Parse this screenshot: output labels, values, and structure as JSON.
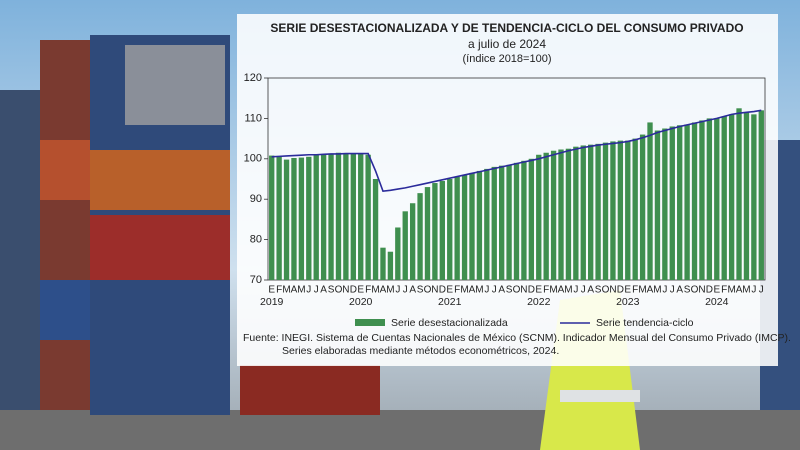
{
  "chart_data": {
    "type": "bar",
    "title": "SERIE DESESTACIONALIZADA Y DE TENDENCIA-CICLO DEL CONSUMO PRIVADO",
    "subtitle": "a julio de 2024",
    "subtitle2": "(índice 2018=100)",
    "categories": [
      "E",
      "F",
      "M",
      "A",
      "M",
      "J",
      "J",
      "A",
      "S",
      "O",
      "N",
      "D",
      "E",
      "F",
      "M",
      "A",
      "M",
      "J",
      "J",
      "A",
      "S",
      "O",
      "N",
      "D",
      "E",
      "F",
      "M",
      "A",
      "M",
      "J",
      "J",
      "A",
      "S",
      "O",
      "N",
      "D",
      "E",
      "F",
      "M",
      "A",
      "M",
      "J",
      "J",
      "A",
      "S",
      "O",
      "N",
      "D",
      "E",
      "F",
      "M",
      "A",
      "M",
      "J",
      "J",
      "A",
      "S",
      "O",
      "N",
      "D",
      "E",
      "F",
      "M",
      "A",
      "M",
      "J",
      "J"
    ],
    "years": [
      "2019",
      "2020",
      "2021",
      "2022",
      "2023",
      "2024"
    ],
    "series": [
      {
        "name": "Serie desestacionalizada",
        "color": "#3f8f4f",
        "type": "bar",
        "values": [
          100.8,
          100.7,
          99.8,
          100.2,
          100.3,
          100.5,
          101,
          101,
          101.2,
          101.5,
          101.3,
          101.2,
          101.3,
          101,
          95,
          78,
          77,
          83,
          87,
          89,
          91.5,
          93,
          94,
          94.5,
          95,
          95.5,
          96,
          96.5,
          97,
          97.5,
          98,
          98.3,
          98.5,
          99,
          99.5,
          100,
          101,
          101.5,
          102,
          102.3,
          102.5,
          103,
          103.3,
          103.5,
          103.7,
          104,
          104.3,
          104.5,
          104.5,
          105,
          106,
          109,
          107,
          107.5,
          108,
          108.3,
          108.5,
          109,
          109.5,
          110,
          110,
          110.5,
          111,
          112.5,
          111.5,
          111,
          112
        ]
      },
      {
        "name": "Serie tendencia-ciclo",
        "color": "#2b2b9b",
        "type": "line",
        "values": [
          100.5,
          100.6,
          100.7,
          100.8,
          100.9,
          101,
          101,
          101.1,
          101.2,
          101.2,
          101.3,
          101.3,
          101.3,
          101.3,
          97,
          92,
          92.2,
          92.5,
          92.8,
          93.2,
          93.6,
          94,
          94.4,
          94.8,
          95.2,
          95.6,
          96,
          96.4,
          96.8,
          97.2,
          97.6,
          98,
          98.4,
          98.8,
          99.2,
          99.6,
          100,
          100.5,
          101,
          101.5,
          102,
          102.4,
          102.8,
          103.1,
          103.4,
          103.6,
          103.8,
          104,
          104.3,
          104.7,
          105.2,
          105.8,
          106.5,
          107,
          107.5,
          108,
          108.4,
          108.8,
          109.2,
          109.6,
          110,
          110.5,
          111,
          111.3,
          111.5,
          111.7,
          112
        ]
      }
    ],
    "ylim": [
      70,
      120
    ],
    "yticks": [
      70,
      80,
      90,
      100,
      110,
      120
    ],
    "source_line1": "Fuente: INEGI. Sistema de Cuentas Nacionales de México (SCNM). Indicador Mensual del Consumo Privado (IMCP).",
    "source_line2": "Series elaboradas mediante métodos econométricos, 2024."
  }
}
